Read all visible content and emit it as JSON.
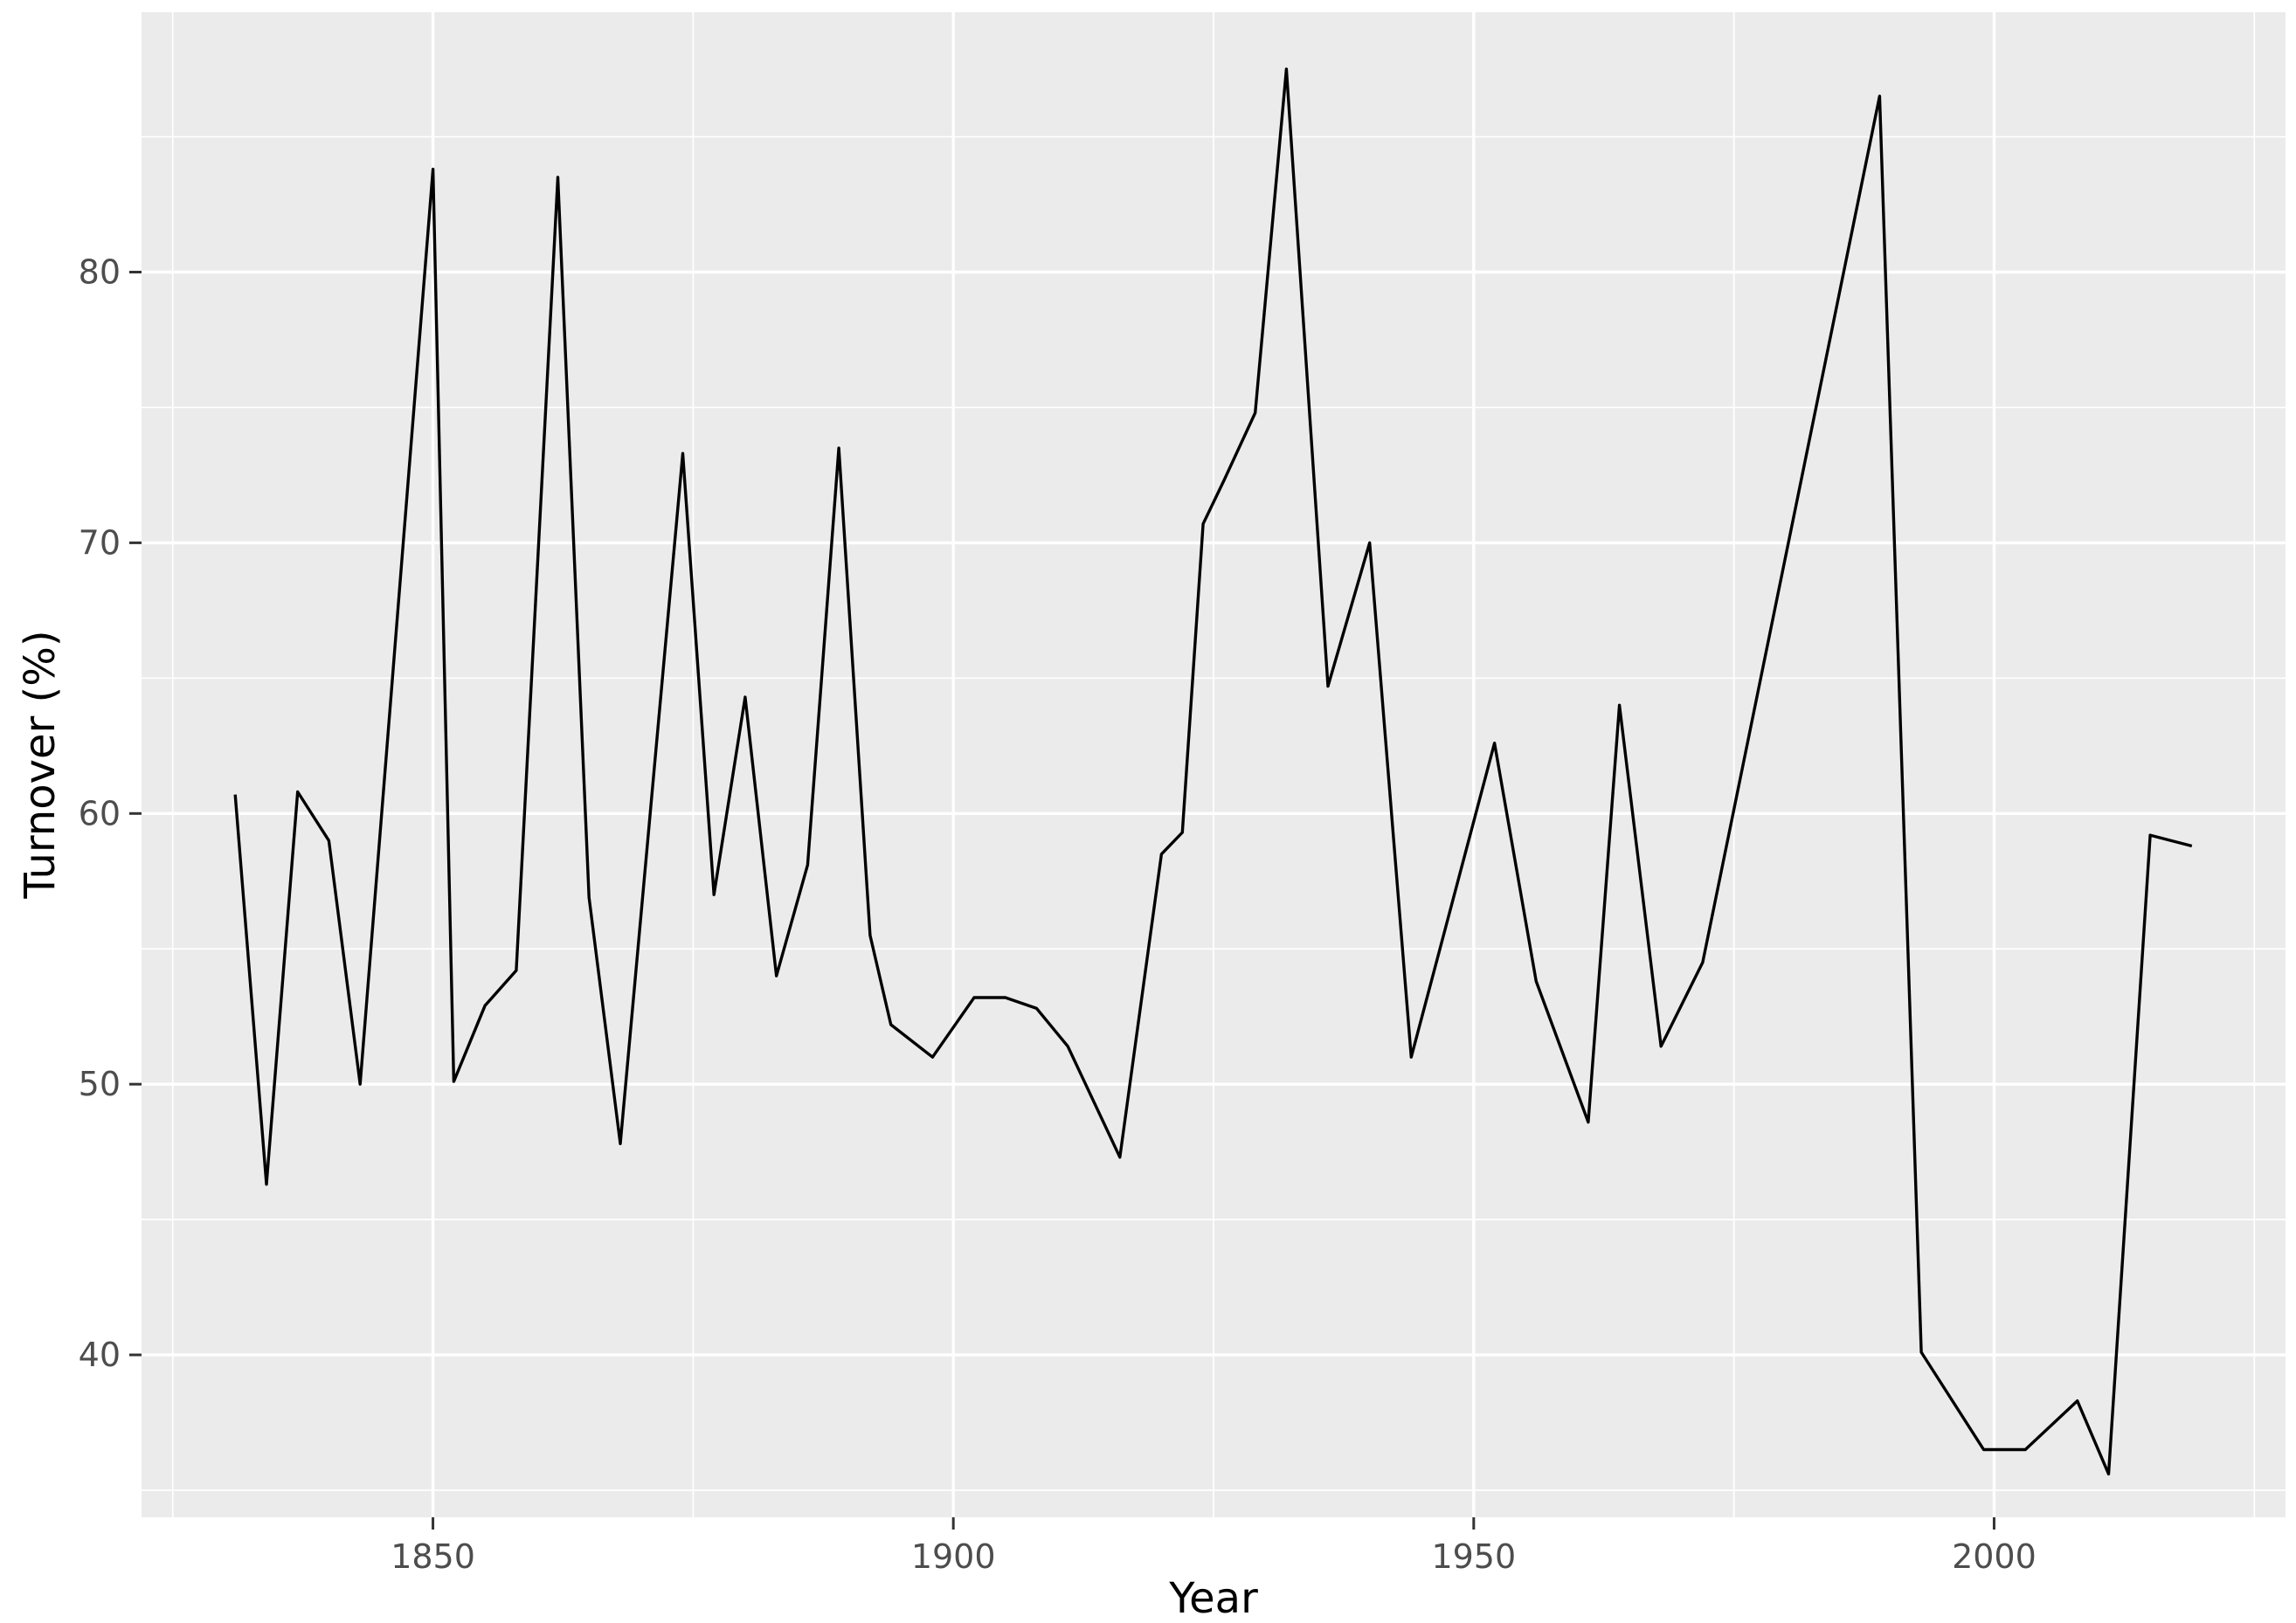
{
  "chart_data": {
    "type": "line",
    "title": "",
    "xlabel": "Year",
    "ylabel": "Turnover (%)",
    "series_name": "Turnover (%)",
    "x": [
      1831,
      1834,
      1837,
      1840,
      1843,
      1850,
      1852,
      1855,
      1858,
      1862,
      1865,
      1868,
      1874,
      1877,
      1880,
      1883,
      1886,
      1889,
      1892,
      1894,
      1898,
      1902,
      1905,
      1908,
      1911,
      1916,
      1920,
      1922,
      1924,
      1926,
      1929,
      1932,
      1936,
      1940,
      1944,
      1952,
      1956,
      1961,
      1964,
      1968,
      1972,
      1989,
      1993,
      1999,
      2003,
      2008,
      2011,
      2015,
      2019
    ],
    "y": [
      60.7,
      46.3,
      60.8,
      59.0,
      50.0,
      83.8,
      50.1,
      52.9,
      54.2,
      83.5,
      56.9,
      47.8,
      73.3,
      57.0,
      64.3,
      54.0,
      58.1,
      73.5,
      55.5,
      52.2,
      51.0,
      53.2,
      53.2,
      52.8,
      51.4,
      47.3,
      58.5,
      59.3,
      70.7,
      72.3,
      74.8,
      87.5,
      64.7,
      70.0,
      51.0,
      62.6,
      53.8,
      48.6,
      64.0,
      51.4,
      54.5,
      86.5,
      40.1,
      36.5,
      36.5,
      38.3,
      35.6,
      59.2,
      58.8
    ],
    "x_ticks": [
      1850,
      1900,
      1950,
      2000
    ],
    "y_ticks": [
      40,
      50,
      60,
      70,
      80
    ],
    "x_minor_ticks": [
      1825,
      1875,
      1925,
      1975,
      2025
    ],
    "y_minor_ticks": [
      35,
      45,
      55,
      65,
      75,
      85
    ],
    "xlim": [
      1822,
      2028
    ],
    "ylim": [
      34,
      89.6
    ],
    "grid": "major+minor",
    "legend": "none",
    "style": "ggplot2",
    "colors": {
      "background": "#FFFFFF",
      "panel_bg": "#EBEBEB",
      "grid": "#FFFFFF",
      "line": "#000000",
      "tick_label": "#4D4D4D",
      "tick_mark": "#333333",
      "axis_title": "#000000"
    }
  }
}
